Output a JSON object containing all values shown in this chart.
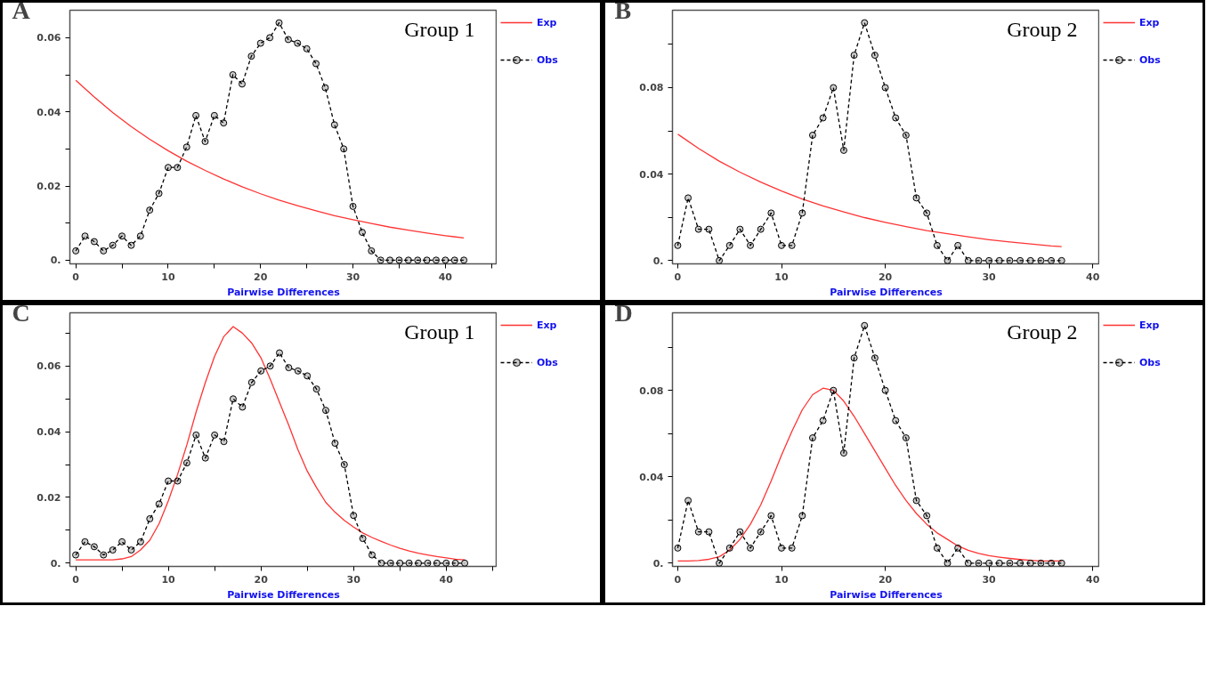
{
  "chart_data": [
    {
      "type": "line",
      "title": "A",
      "subtitle": "Group 1",
      "xlabel": "Pairwise Differences",
      "xlim": [
        -0.64,
        45.6
      ],
      "ylim": [
        -0.001,
        0.0674
      ],
      "xticks": [
        0,
        {
          "value": 5,
          "label": null
        },
        10,
        {
          "value": 15,
          "label": null
        },
        20,
        {
          "value": 25,
          "label": null
        },
        30,
        {
          "value": 35,
          "label": null
        },
        40,
        {
          "value": 45,
          "label": null
        }
      ],
      "yticks": [
        {
          "value": 0,
          "label": "0."
        },
        {
          "value": 0.01,
          "label": null
        },
        0.02,
        {
          "value": 0.03,
          "label": null
        },
        0.04,
        {
          "value": 0.05,
          "label": null
        },
        0.06
      ],
      "grid": false,
      "legend": "right",
      "series": [
        {
          "name": "Exp",
          "color": "#ff3333",
          "marker": "none",
          "line_style": "solid",
          "x": [
            0,
            2,
            4,
            6,
            8,
            10,
            12,
            14,
            16,
            18,
            20,
            22,
            24,
            26,
            28,
            30,
            32,
            34,
            36,
            38,
            40,
            42
          ],
          "values": [
            0.0485,
            0.044,
            0.0398,
            0.036,
            0.0326,
            0.0295,
            0.0267,
            0.0242,
            0.0219,
            0.0198,
            0.0179,
            0.0162,
            0.0147,
            0.0133,
            0.012,
            0.0109,
            0.0099,
            0.0089,
            0.0081,
            0.0073,
            0.0066,
            0.006
          ]
        },
        {
          "name": "Obs",
          "color": "#000000",
          "marker": "circle",
          "line_style": "dashed",
          "x": [
            0,
            1,
            2,
            3,
            4,
            5,
            6,
            7,
            8,
            9,
            10,
            11,
            12,
            13,
            14,
            15,
            16,
            17,
            18,
            19,
            20,
            21,
            22,
            23,
            24,
            25,
            26,
            27,
            28,
            29,
            30,
            31,
            32,
            33,
            34,
            35,
            36,
            37,
            38,
            39,
            40,
            41,
            42
          ],
          "values": [
            0.0025,
            0.0065,
            0.005,
            0.0025,
            0.004,
            0.0065,
            0.004,
            0.0065,
            0.0135,
            0.018,
            0.025,
            0.025,
            0.0305,
            0.039,
            0.032,
            0.039,
            0.037,
            0.05,
            0.0475,
            0.055,
            0.0585,
            0.06,
            0.064,
            0.0595,
            0.0585,
            0.057,
            0.053,
            0.0465,
            0.0365,
            0.03,
            0.0145,
            0.0075,
            0.0025,
            0,
            0,
            0,
            0,
            0,
            0,
            0,
            0,
            0,
            0
          ]
        }
      ]
    },
    {
      "type": "line",
      "title": "B",
      "subtitle": "Group 2",
      "xlabel": "Pairwise Differences",
      "xlim": [
        -0.51,
        40.67
      ],
      "ylim": [
        -0.0015,
        0.1158
      ],
      "xticks": [
        0,
        10,
        20,
        30,
        40
      ],
      "yticks": [
        {
          "value": 0,
          "label": "0."
        },
        {
          "value": 0.02,
          "label": null
        },
        0.04,
        {
          "value": 0.06,
          "label": null
        },
        0.08,
        {
          "value": 0.1,
          "label": null
        }
      ],
      "grid": false,
      "legend": "right",
      "series": [
        {
          "name": "Exp",
          "color": "#ff3333",
          "marker": "none",
          "line_style": "solid",
          "x": [
            0,
            2,
            4,
            6,
            8,
            10,
            12,
            14,
            16,
            18,
            20,
            22,
            24,
            26,
            28,
            30,
            32,
            34,
            36,
            37
          ],
          "values": [
            0.0585,
            0.0519,
            0.046,
            0.0409,
            0.0363,
            0.0322,
            0.0285,
            0.0253,
            0.0225,
            0.0199,
            0.0177,
            0.0157,
            0.0139,
            0.0124,
            0.011,
            0.0097,
            0.0086,
            0.0077,
            0.0068,
            0.0065
          ]
        },
        {
          "name": "Obs",
          "color": "#000000",
          "marker": "circle",
          "line_style": "dashed",
          "x": [
            0,
            1,
            2,
            3,
            4,
            5,
            6,
            7,
            8,
            9,
            10,
            11,
            12,
            13,
            14,
            15,
            16,
            17,
            18,
            19,
            20,
            21,
            22,
            23,
            24,
            25,
            26,
            27,
            28,
            29,
            30,
            31,
            32,
            33,
            34,
            35,
            36,
            37
          ],
          "values": [
            0.007,
            0.029,
            0.0145,
            0.0145,
            0,
            0.007,
            0.0145,
            0.007,
            0.0145,
            0.022,
            0.007,
            0.007,
            0.022,
            0.058,
            0.066,
            0.08,
            0.051,
            0.095,
            0.11,
            0.095,
            0.08,
            0.066,
            0.058,
            0.029,
            0.022,
            0.007,
            0,
            0.007,
            0,
            0,
            0,
            0,
            0,
            0,
            0,
            0,
            0,
            0
          ]
        }
      ]
    },
    {
      "type": "line",
      "title": "C",
      "subtitle": "Group 1",
      "xlabel": "Pairwise Differences",
      "xlim": [
        -0.63,
        45.5
      ],
      "ylim": [
        -0.001,
        0.0762
      ],
      "xticks": [
        0,
        {
          "value": 5,
          "label": null
        },
        10,
        {
          "value": 15,
          "label": null
        },
        20,
        {
          "value": 25,
          "label": null
        },
        30,
        {
          "value": 35,
          "label": null
        },
        40,
        {
          "value": 45,
          "label": null
        }
      ],
      "yticks": [
        {
          "value": 0,
          "label": "0."
        },
        {
          "value": 0.01,
          "label": null
        },
        0.02,
        {
          "value": 0.03,
          "label": null
        },
        0.04,
        {
          "value": 0.05,
          "label": null
        },
        0.06,
        {
          "value": 0.07,
          "label": null
        }
      ],
      "grid": false,
      "legend": "right",
      "series": [
        {
          "name": "Exp",
          "color": "#ff3333",
          "marker": "none",
          "line_style": "solid",
          "x": [
            0,
            1,
            2,
            3,
            4,
            5,
            6,
            7,
            8,
            9,
            10,
            11,
            12,
            13,
            14,
            15,
            16,
            17,
            18,
            19,
            20,
            21,
            22,
            23,
            24,
            25,
            26,
            27,
            28,
            29,
            30,
            31,
            32,
            33,
            34,
            35,
            36,
            37,
            38,
            39,
            40,
            41,
            42
          ],
          "values": [
            0.001,
            0.001,
            0.001,
            0.001,
            0.001,
            0.0013,
            0.002,
            0.004,
            0.007,
            0.012,
            0.019,
            0.027,
            0.036,
            0.046,
            0.055,
            0.063,
            0.069,
            0.072,
            0.07,
            0.067,
            0.0625,
            0.056,
            0.049,
            0.042,
            0.0345,
            0.028,
            0.023,
            0.0185,
            0.0155,
            0.013,
            0.011,
            0.0092,
            0.0078,
            0.0066,
            0.0055,
            0.0045,
            0.0037,
            0.003,
            0.0025,
            0.002,
            0.0016,
            0.0012,
            0.001
          ]
        },
        {
          "name": "Obs",
          "color": "#000000",
          "marker": "circle",
          "line_style": "dashed",
          "x": [
            0,
            1,
            2,
            3,
            4,
            5,
            6,
            7,
            8,
            9,
            10,
            11,
            12,
            13,
            14,
            15,
            16,
            17,
            18,
            19,
            20,
            21,
            22,
            23,
            24,
            25,
            26,
            27,
            28,
            29,
            30,
            31,
            32,
            33,
            34,
            35,
            36,
            37,
            38,
            39,
            40,
            41,
            42
          ],
          "values": [
            0.0025,
            0.0065,
            0.005,
            0.0025,
            0.004,
            0.0065,
            0.004,
            0.0065,
            0.0135,
            0.018,
            0.025,
            0.025,
            0.0305,
            0.039,
            0.032,
            0.039,
            0.037,
            0.05,
            0.0475,
            0.055,
            0.0585,
            0.06,
            0.064,
            0.0595,
            0.0585,
            0.057,
            0.053,
            0.0465,
            0.0365,
            0.03,
            0.0145,
            0.0075,
            0.0025,
            0,
            0,
            0,
            0,
            0,
            0,
            0,
            0,
            0,
            0
          ]
        }
      ]
    },
    {
      "type": "line",
      "title": "D",
      "subtitle": "Group 2",
      "xlabel": "Pairwise Differences",
      "xlim": [
        -0.51,
        40.67
      ],
      "ylim": [
        -0.0015,
        0.1159
      ],
      "xticks": [
        0,
        10,
        20,
        30,
        40
      ],
      "yticks": [
        {
          "value": 0,
          "label": "0."
        },
        {
          "value": 0.02,
          "label": null
        },
        0.04,
        {
          "value": 0.06,
          "label": null
        },
        0.08,
        {
          "value": 0.1,
          "label": null
        }
      ],
      "grid": false,
      "legend": "right",
      "series": [
        {
          "name": "Exp",
          "color": "#ff3333",
          "marker": "none",
          "line_style": "solid",
          "x": [
            0,
            1,
            2,
            3,
            4,
            5,
            6,
            7,
            8,
            9,
            10,
            11,
            12,
            13,
            14,
            15,
            16,
            17,
            18,
            19,
            20,
            21,
            22,
            23,
            24,
            25,
            26,
            27,
            28,
            29,
            30,
            31,
            32,
            33,
            34,
            35,
            36,
            37
          ],
          "values": [
            0.001,
            0.001,
            0.0012,
            0.0018,
            0.003,
            0.006,
            0.011,
            0.018,
            0.027,
            0.038,
            0.05,
            0.061,
            0.071,
            0.078,
            0.081,
            0.08,
            0.075,
            0.068,
            0.06,
            0.052,
            0.044,
            0.036,
            0.029,
            0.023,
            0.018,
            0.014,
            0.011,
            0.008,
            0.006,
            0.0045,
            0.0035,
            0.0028,
            0.0022,
            0.0017,
            0.0013,
            0.001,
            0.001,
            0.001
          ]
        },
        {
          "name": "Obs",
          "color": "#000000",
          "marker": "circle",
          "line_style": "dashed",
          "x": [
            0,
            1,
            2,
            3,
            4,
            5,
            6,
            7,
            8,
            9,
            10,
            11,
            12,
            13,
            14,
            15,
            16,
            17,
            18,
            19,
            20,
            21,
            22,
            23,
            24,
            25,
            26,
            27,
            28,
            29,
            30,
            31,
            32,
            33,
            34,
            35,
            36,
            37
          ],
          "values": [
            0.007,
            0.029,
            0.0145,
            0.0145,
            0,
            0.007,
            0.0145,
            0.007,
            0.0145,
            0.022,
            0.007,
            0.007,
            0.022,
            0.058,
            0.066,
            0.08,
            0.051,
            0.095,
            0.11,
            0.095,
            0.08,
            0.066,
            0.058,
            0.029,
            0.022,
            0.007,
            0,
            0.007,
            0,
            0,
            0,
            0,
            0,
            0,
            0,
            0,
            0,
            0
          ]
        }
      ]
    }
  ]
}
